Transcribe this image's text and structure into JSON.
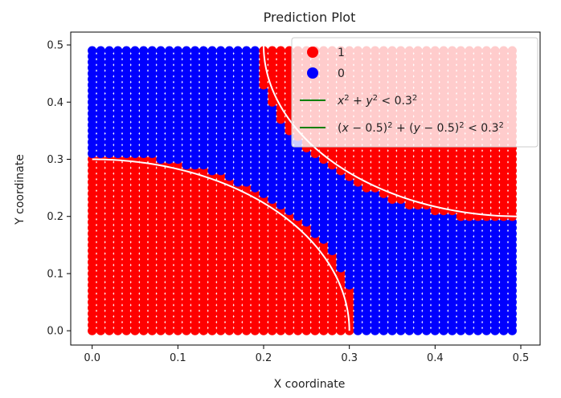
{
  "chart_data": {
    "type": "scatter",
    "title": "Prediction Plot",
    "xlabel": "X coordinate",
    "ylabel": "Y coordinate",
    "xlim": [
      -0.025,
      0.5225
    ],
    "ylim": [
      -0.025,
      0.5225
    ],
    "grid": false,
    "legend_position": "top-right",
    "x_ticks": [
      0.0,
      0.1,
      0.2,
      0.3,
      0.4,
      0.5
    ],
    "x_tick_labels": [
      "0.0",
      "0.1",
      "0.2",
      "0.3",
      "0.4",
      "0.5"
    ],
    "y_ticks": [
      0.0,
      0.1,
      0.2,
      0.3,
      0.4,
      0.5
    ],
    "y_tick_labels": [
      "0.0",
      "0.1",
      "0.2",
      "0.3",
      "0.4",
      "0.5"
    ],
    "grid_spec": {
      "x_start": 0.0,
      "x_end": 0.49,
      "y_start": 0.0,
      "y_end": 0.49,
      "step": 0.01
    },
    "prediction_radius": 0.31,
    "series": [
      {
        "name": "1",
        "kind": "scatter",
        "color": "#ff0000",
        "rule": "inside either circle"
      },
      {
        "name": "0",
        "kind": "scatter",
        "color": "#0000ff",
        "rule": "outside both circles"
      },
      {
        "name": "$x^2+y^2<0.3^2$",
        "kind": "boundary",
        "color": "#ffffff",
        "legend_color": "#008000",
        "center": [
          0,
          0
        ],
        "radius": 0.3
      },
      {
        "name": "$(x-0.5)^2+(y-0.5)^2<0.3^2$",
        "kind": "boundary",
        "color": "#ffffff",
        "legend_color": "#008000",
        "center": [
          0.5,
          0.5
        ],
        "radius": 0.3
      }
    ],
    "legend": [
      {
        "label": "1",
        "type": "marker",
        "color": "#ff0000"
      },
      {
        "label": "0",
        "type": "marker",
        "color": "#0000ff"
      },
      {
        "label_parts": [
          [
            "x",
            "i"
          ],
          [
            "2",
            "sup"
          ],
          [
            " + ",
            "n"
          ],
          [
            "y",
            "i"
          ],
          [
            "2",
            "sup"
          ],
          [
            " < 0.3",
            "n"
          ],
          [
            "2",
            "sup"
          ]
        ],
        "type": "line",
        "color": "#008000"
      },
      {
        "label_parts": [
          [
            "(",
            "n"
          ],
          [
            "x",
            "i"
          ],
          [
            " − 0.5)",
            "n"
          ],
          [
            "2",
            "sup"
          ],
          [
            " + (",
            "n"
          ],
          [
            "y",
            "i"
          ],
          [
            " − 0.5)",
            "n"
          ],
          [
            "2",
            "sup"
          ],
          [
            " < 0.3",
            "n"
          ],
          [
            "2",
            "sup"
          ]
        ],
        "type": "line",
        "color": "#008000"
      }
    ]
  }
}
